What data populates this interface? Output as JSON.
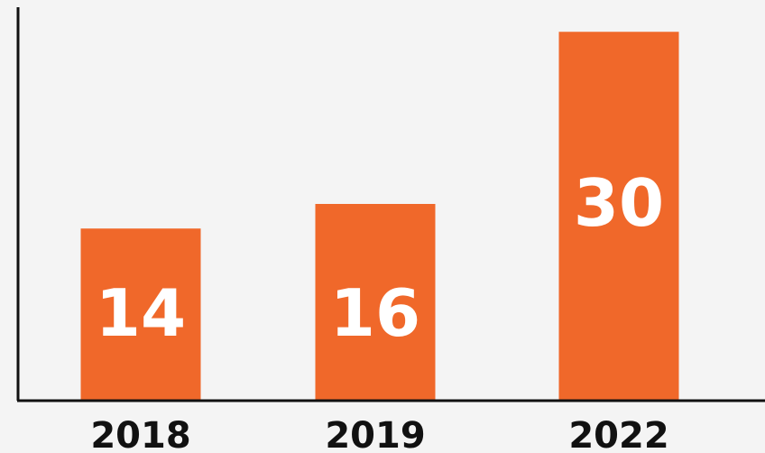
{
  "chart_data": {
    "type": "bar",
    "categories": [
      "2018",
      "2019",
      "2022"
    ],
    "values": [
      14,
      16,
      30
    ],
    "data_labels": [
      "14",
      "16",
      "30"
    ],
    "title": "",
    "xlabel": "",
    "ylabel": "",
    "ylim": [
      0,
      32
    ],
    "grid": false,
    "legend": "none",
    "colors": {
      "bar": "#f0682a",
      "bar_label": "#ffffff",
      "axis": "#111111",
      "category_label": "#111111",
      "background": "#f4f4f4"
    }
  }
}
